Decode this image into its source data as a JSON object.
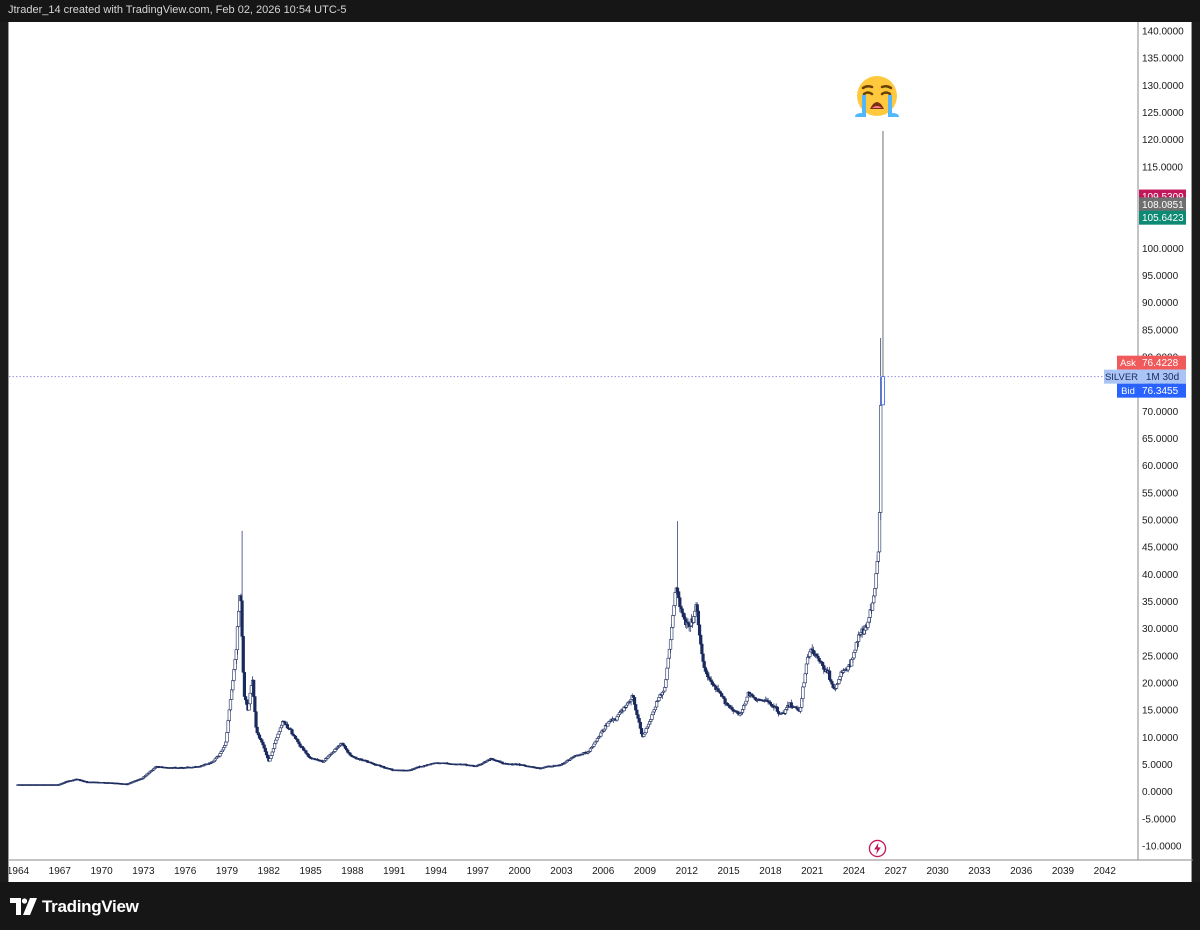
{
  "caption": "Jtrader_14 created with TradingView.com, Feb 02, 2026 10:54 UTC-5",
  "brand": {
    "name": "TradingView",
    "logo_icon": "tradingview-logo-icon"
  },
  "icons": {
    "emoji": "loudly-crying-face-icon",
    "lightning": "lightning-bolt-icon"
  },
  "price_labels": {
    "high": {
      "value": "109.5309",
      "color": "#c2185b"
    },
    "mid": {
      "value": "108.0851",
      "color": "#6f6f6f"
    },
    "low": {
      "value": "105.6423",
      "color": "#0d8a73"
    }
  },
  "quote": {
    "ask_label": "Ask",
    "ask_value": "76.4228",
    "ask_color": "#f05a5a",
    "symbol": "SILVER",
    "interval": "1M 30d",
    "bid_label": "Bid",
    "bid_value": "76.3455",
    "bid_color": "#2962ff",
    "current_price": 76.38
  },
  "chart_data": {
    "type": "candlestick",
    "title": "",
    "xlabel": "",
    "ylabel": "",
    "symbol": "SILVER",
    "interval": "1M",
    "ylim": [
      -10,
      140
    ],
    "y_ticks": [
      "140.0000",
      "135.0000",
      "130.0000",
      "125.0000",
      "120.0000",
      "115.0000",
      "110.0000",
      "105.0000",
      "100.0000",
      "95.0000",
      "90.0000",
      "85.0000",
      "80.0000",
      "75.0000",
      "70.0000",
      "65.0000",
      "60.0000",
      "55.0000",
      "50.0000",
      "45.0000",
      "40.0000",
      "35.0000",
      "30.0000",
      "25.0000",
      "20.0000",
      "15.0000",
      "10.0000",
      "5.0000",
      "0.0000",
      "-5.0000",
      "-10.0000"
    ],
    "x_ticks": [
      "1964",
      "1967",
      "1970",
      "1973",
      "1976",
      "1979",
      "1982",
      "1985",
      "1988",
      "1991",
      "1994",
      "1997",
      "2000",
      "2003",
      "2006",
      "2009",
      "2012",
      "2015",
      "2018",
      "2021",
      "2024",
      "2027",
      "2030",
      "2033",
      "2036",
      "2039",
      "2042"
    ],
    "bull_color": "#ffffff",
    "bear_color": "#1a2a5e",
    "grid": false,
    "price_path": [
      [
        1964.0,
        1.29
      ],
      [
        1967.0,
        1.29
      ],
      [
        1967.6,
        1.9
      ],
      [
        1968.3,
        2.3
      ],
      [
        1969.0,
        1.8
      ],
      [
        1971.0,
        1.6
      ],
      [
        1971.9,
        1.4
      ],
      [
        1973.0,
        2.5
      ],
      [
        1974.0,
        4.6
      ],
      [
        1975.0,
        4.4
      ],
      [
        1976.0,
        4.4
      ],
      [
        1977.0,
        4.6
      ],
      [
        1978.0,
        5.4
      ],
      [
        1978.6,
        7.0
      ],
      [
        1979.0,
        9.0
      ],
      [
        1979.3,
        16.0
      ],
      [
        1979.7,
        25.0
      ],
      [
        1980.05,
        38.0
      ],
      [
        1980.3,
        18.0
      ],
      [
        1980.6,
        15.0
      ],
      [
        1980.9,
        21.0
      ],
      [
        1981.2,
        11.0
      ],
      [
        1981.6,
        9.0
      ],
      [
        1982.1,
        5.5
      ],
      [
        1982.6,
        9.5
      ],
      [
        1983.1,
        13.0
      ],
      [
        1983.6,
        11.5
      ],
      [
        1984.2,
        9.0
      ],
      [
        1985.0,
        6.3
      ],
      [
        1986.0,
        5.5
      ],
      [
        1987.3,
        9.0
      ],
      [
        1988.0,
        6.5
      ],
      [
        1989.5,
        5.2
      ],
      [
        1991.0,
        4.0
      ],
      [
        1992.0,
        3.9
      ],
      [
        1993.5,
        5.0
      ],
      [
        1994.0,
        5.3
      ],
      [
        1995.0,
        5.2
      ],
      [
        1996.0,
        5.0
      ],
      [
        1997.0,
        4.7
      ],
      [
        1998.0,
        6.0
      ],
      [
        1999.0,
        5.2
      ],
      [
        2000.0,
        5.0
      ],
      [
        2001.5,
        4.3
      ],
      [
        2002.0,
        4.6
      ],
      [
        2003.0,
        4.9
      ],
      [
        2004.0,
        6.5
      ],
      [
        2005.0,
        7.3
      ],
      [
        2006.0,
        11.0
      ],
      [
        2006.5,
        13.0
      ],
      [
        2007.0,
        13.5
      ],
      [
        2008.2,
        17.5
      ],
      [
        2008.9,
        10.0
      ],
      [
        2009.5,
        13.5
      ],
      [
        2010.0,
        17.0
      ],
      [
        2010.5,
        19.0
      ],
      [
        2011.0,
        30.0
      ],
      [
        2011.3,
        38.0
      ],
      [
        2011.8,
        32.0
      ],
      [
        2012.3,
        30.0
      ],
      [
        2012.8,
        34.0
      ],
      [
        2013.2,
        24.0
      ],
      [
        2013.6,
        21.0
      ],
      [
        2014.0,
        19.5
      ],
      [
        2014.6,
        17.5
      ],
      [
        2015.0,
        16.0
      ],
      [
        2015.9,
        14.0
      ],
      [
        2016.5,
        18.0
      ],
      [
        2017.0,
        17.0
      ],
      [
        2018.0,
        16.5
      ],
      [
        2018.9,
        14.2
      ],
      [
        2019.5,
        16.0
      ],
      [
        2020.2,
        15.0
      ],
      [
        2020.7,
        24.0
      ],
      [
        2021.0,
        26.5
      ],
      [
        2021.6,
        24.0
      ],
      [
        2022.2,
        22.0
      ],
      [
        2022.7,
        18.5
      ],
      [
        2023.2,
        22.0
      ],
      [
        2023.8,
        23.0
      ],
      [
        2024.3,
        28.0
      ],
      [
        2024.9,
        30.0
      ],
      [
        2025.3,
        33.0
      ],
      [
        2025.6,
        38.0
      ],
      [
        2025.9,
        47.0
      ],
      [
        2026.0,
        71.5
      ],
      [
        2026.08,
        76.4
      ]
    ],
    "notable_highs": [
      {
        "x": 1980.05,
        "high": 48.0
      },
      {
        "x": 2011.3,
        "high": 49.8
      },
      {
        "x": 2025.95,
        "high": 83.5
      },
      {
        "x": 2026.08,
        "high": 121.6
      }
    ]
  }
}
